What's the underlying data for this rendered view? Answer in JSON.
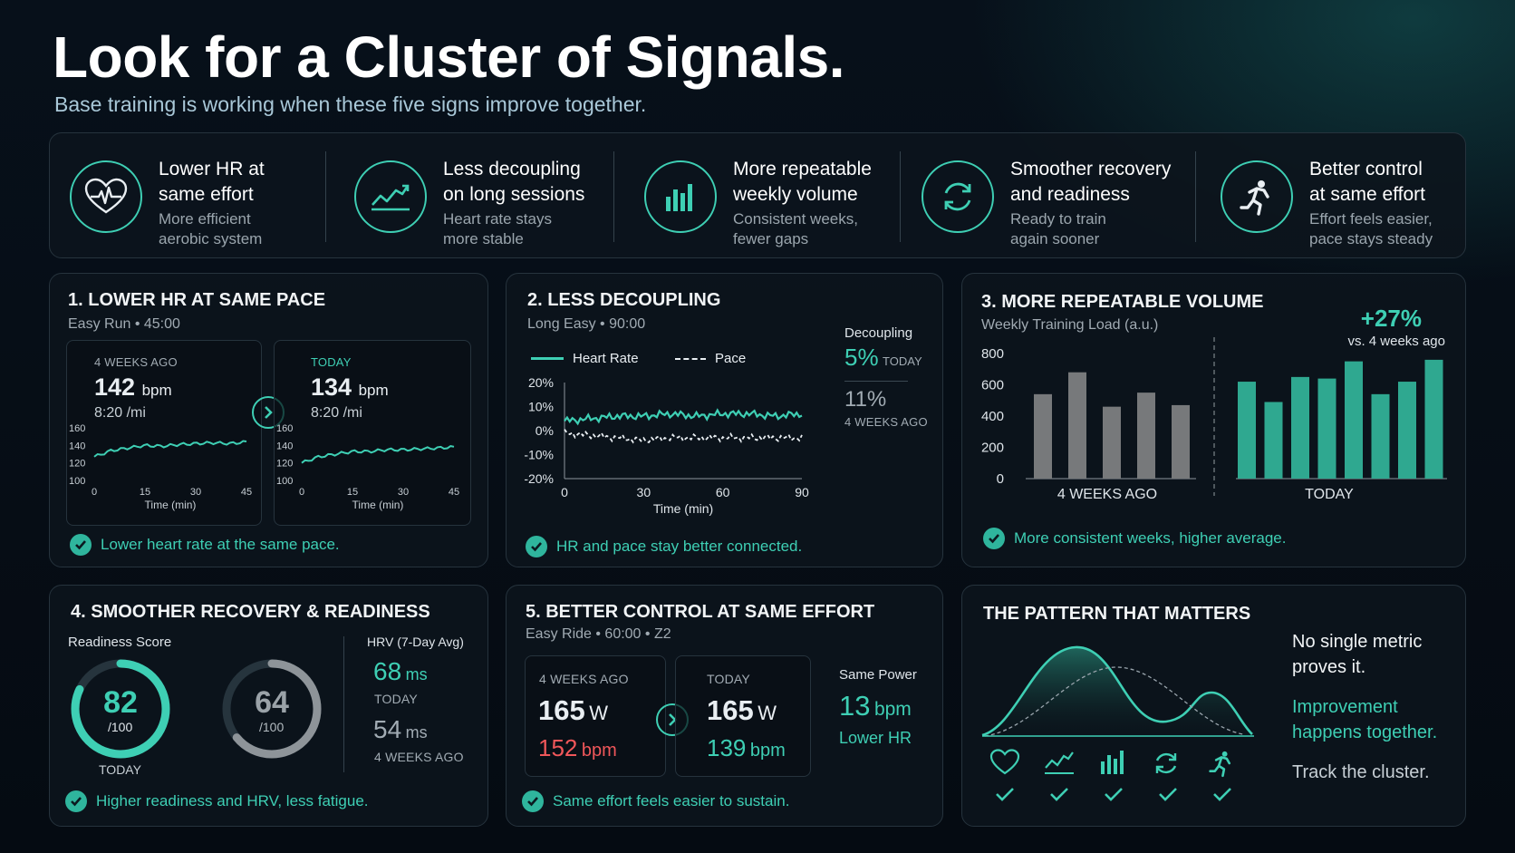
{
  "header": {
    "title": "Look for a Cluster of Signals.",
    "subtitle": "Base training is working when these five signs improve together."
  },
  "signals": [
    {
      "icon": "heart-pulse-icon",
      "title_1": "Lower HR at",
      "title_2": "same effort",
      "desc_1": "More efficient",
      "desc_2": "aerobic system"
    },
    {
      "icon": "trend-up-icon",
      "title_1": "Less decoupling",
      "title_2": "on long sessions",
      "desc_1": "Heart rate stays",
      "desc_2": "more stable"
    },
    {
      "icon": "bar-chart-icon",
      "title_1": "More repeatable",
      "title_2": "weekly volume",
      "desc_1": "Consistent weeks,",
      "desc_2": "fewer gaps"
    },
    {
      "icon": "refresh-icon",
      "title_1": "Smoother recovery",
      "title_2": "and readiness",
      "desc_1": "Ready to train",
      "desc_2": "again sooner"
    },
    {
      "icon": "runner-icon",
      "title_1": "Better control",
      "title_2": "at same effort",
      "desc_1": "Effort feels easier,",
      "desc_2": "pace stays steady"
    }
  ],
  "panel1": {
    "title": "1. LOWER HR AT SAME PACE",
    "subtitle": "Easy Run  •  45:00",
    "before": {
      "label": "4 WEEKS AGO",
      "hr": "142",
      "unit": "bpm",
      "pace": "8:20 /mi"
    },
    "after": {
      "label": "TODAY",
      "hr": "134",
      "unit": "bpm",
      "pace": "8:20 /mi"
    },
    "y_ticks": [
      "160",
      "140",
      "120",
      "100"
    ],
    "x_ticks": [
      "0",
      "15",
      "30",
      "45"
    ],
    "x_label": "Time (min)",
    "footer": "Lower heart rate at the same pace."
  },
  "panel2": {
    "title": "2. LESS DECOUPLING",
    "subtitle": "Long Easy  •  90:00",
    "legend_hr": "Heart Rate",
    "legend_pace": "Pace",
    "y_ticks": [
      "20%",
      "10%",
      "0%",
      "-10%",
      "-20%"
    ],
    "x_ticks": [
      "0",
      "30",
      "60",
      "90"
    ],
    "x_label": "Time (min)",
    "decoupling_label": "Decoupling",
    "today_value": "5%",
    "today_label": "TODAY",
    "before_value": "11%",
    "before_label": "4 WEEKS AGO",
    "footer": "HR and pace stay better connected."
  },
  "panel3": {
    "title": "3. MORE REPEATABLE VOLUME",
    "subtitle": "Weekly Training Load (a.u.)",
    "delta": "+27%",
    "delta_note": "vs. 4 weeks ago",
    "footer": "More consistent weeks, higher average."
  },
  "panel4": {
    "title": "4. SMOOTHER RECOVERY & READINESS",
    "readiness_label": "Readiness Score",
    "today_score": "82",
    "today_den": "/100",
    "today_label": "TODAY",
    "before_score": "64",
    "before_den": "/100",
    "hrv_label": "HRV (7-Day Avg)",
    "hrv_today": "68",
    "hrv_today_unit": "ms",
    "hrv_today_label": "TODAY",
    "hrv_before": "54",
    "hrv_before_unit": "ms",
    "hrv_before_label": "4 WEEKS AGO",
    "footer": "Higher readiness and HRV, less fatigue."
  },
  "panel5": {
    "title": "5. BETTER CONTROL AT SAME EFFORT",
    "subtitle": "Easy Ride  •  60:00  •  Z2",
    "before_label": "4 WEEKS AGO",
    "before_power": "165",
    "before_power_unit": "W",
    "before_hr": "152",
    "before_hr_unit": "bpm",
    "after_label": "TODAY",
    "after_power": "165",
    "after_power_unit": "W",
    "after_hr": "139",
    "after_hr_unit": "bpm",
    "same_power_label": "Same Power",
    "lower_hr_value": "13",
    "lower_hr_unit": "bpm",
    "lower_hr_label": "Lower HR",
    "footer": "Same effort feels easier to sustain."
  },
  "panel6": {
    "title": "THE PATTERN THAT MATTERS",
    "line1": "No single metric",
    "line2": "proves it.",
    "line3": "Improvement",
    "line4": "happens together.",
    "line5": "Track the cluster.",
    "icons": [
      "heart-outline-icon",
      "trend-up-icon",
      "bar-chart-icon",
      "refresh-icon",
      "runner-icon"
    ]
  },
  "colors": {
    "accent": "#3ecfb4",
    "alert": "#f0575a",
    "bar_gray": "#77797b",
    "background": "#060c13"
  },
  "chart_data": [
    {
      "type": "line",
      "title": "4 WEEKS AGO",
      "xlabel": "Time (min)",
      "ylim": [
        100,
        160
      ],
      "xlim": [
        0,
        45
      ],
      "x": [
        0,
        5,
        10,
        15,
        20,
        25,
        30,
        35,
        40,
        45
      ],
      "series": [
        {
          "values": [
            127,
            134,
            137,
            140,
            139,
            141,
            142,
            143,
            142,
            144
          ]
        }
      ]
    },
    {
      "type": "line",
      "title": "TODAY",
      "xlabel": "Time (min)",
      "ylim": [
        100,
        160
      ],
      "xlim": [
        0,
        45
      ],
      "x": [
        0,
        5,
        10,
        15,
        20,
        25,
        30,
        35,
        40,
        45
      ],
      "series": [
        {
          "values": [
            120,
            127,
            130,
            133,
            133,
            135,
            135,
            136,
            137,
            138
          ]
        }
      ]
    },
    {
      "type": "line",
      "xlabel": "Time (min)",
      "ylim": [
        -20,
        20
      ],
      "xlim": [
        0,
        90
      ],
      "x": [
        0,
        10,
        20,
        30,
        40,
        50,
        60,
        70,
        80,
        90
      ],
      "series": [
        {
          "name": "Heart Rate",
          "values": [
            4,
            5,
            6,
            6,
            7,
            6,
            7,
            7,
            6,
            7
          ]
        },
        {
          "name": "Pace",
          "values": [
            -1,
            -2,
            -3,
            -4,
            -3,
            -3,
            -3,
            -3,
            -3,
            -3
          ]
        }
      ]
    },
    {
      "type": "bar",
      "title": "Weekly Training Load (a.u.)",
      "ylim": [
        0,
        800
      ],
      "y_ticks": [
        800,
        600,
        400,
        200,
        0
      ],
      "groups": [
        {
          "label": "4 WEEKS AGO",
          "values": [
            540,
            680,
            460,
            550,
            470
          ]
        },
        {
          "label": "TODAY",
          "values": [
            620,
            490,
            650,
            640,
            750,
            540,
            620,
            760
          ]
        }
      ]
    }
  ]
}
